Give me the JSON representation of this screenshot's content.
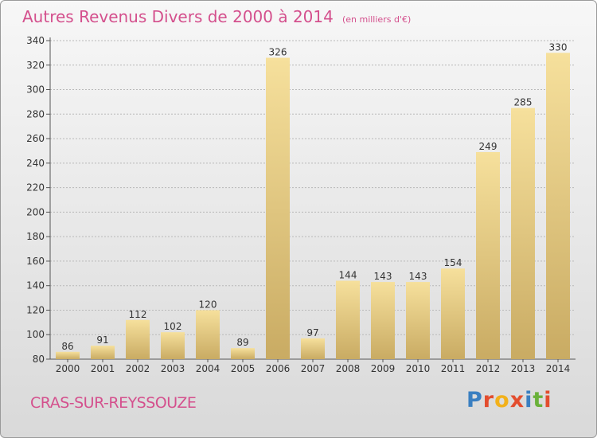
{
  "header": {
    "title": "Autres Revenus Divers de 2000 à 2014",
    "unit": "(en milliers d'€)"
  },
  "footer": {
    "city": "CRAS-SUR-REYSSOUZE",
    "logo_letters": [
      "P",
      "r",
      "o",
      "x",
      "i",
      "t",
      "i"
    ],
    "logo_colors": [
      "#3a7fc1",
      "#e34d2e",
      "#f2b11b",
      "#e34d2e",
      "#3a7fc1",
      "#6ab13a",
      "#e34d2e"
    ]
  },
  "colors": {
    "title": "#d4508d",
    "bar_light": "#f6e09c",
    "bar_dark": "#c9ab63",
    "grid": "#b8b8b8"
  },
  "chart_data": {
    "type": "bar",
    "title": "Autres Revenus Divers de 2000 à 2014",
    "categories": [
      "2000",
      "2001",
      "2002",
      "2003",
      "2004",
      "2005",
      "2006",
      "2007",
      "2008",
      "2009",
      "2010",
      "2011",
      "2012",
      "2013",
      "2014"
    ],
    "values": [
      86,
      91,
      112,
      102,
      120,
      89,
      326,
      97,
      144,
      143,
      143,
      154,
      249,
      285,
      330
    ],
    "ylim": [
      80,
      340
    ],
    "yticks": [
      80,
      100,
      120,
      140,
      160,
      180,
      200,
      220,
      240,
      260,
      280,
      300,
      320,
      340
    ],
    "grid": true,
    "xlabel": "",
    "ylabel": ""
  }
}
